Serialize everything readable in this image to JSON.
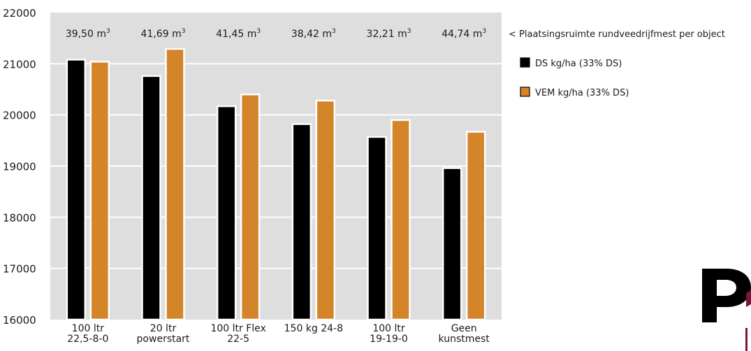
{
  "chart_data": {
    "type": "bar",
    "title": "",
    "xlabel": "",
    "ylabel": "",
    "ylim": [
      16000,
      22000
    ],
    "yticks": [
      16000,
      17000,
      18000,
      19000,
      20000,
      21000,
      22000
    ],
    "grid": true,
    "categories": [
      [
        "100 ltr",
        "22,5-8-0"
      ],
      [
        "20 ltr",
        "powerstart"
      ],
      [
        "100 ltr Flex",
        "22-5"
      ],
      [
        "150 kg 24-8"
      ],
      [
        "100 ltr",
        "19-19-0"
      ],
      [
        "Geen",
        "kunstmest"
      ]
    ],
    "series": [
      {
        "name": "DS kg/ha (33% DS)",
        "color": "#000000",
        "values": [
          21080,
          20760,
          20170,
          19820,
          19570,
          18960
        ]
      },
      {
        "name": "VEM kg/ha (33% DS)",
        "color": "#d4852a",
        "values": [
          21040,
          21290,
          20400,
          20280,
          19900,
          19670
        ]
      }
    ],
    "annotation_row": {
      "values": [
        "39,50",
        "41,69",
        "41,45",
        "38,42",
        "32,21",
        "44,74"
      ],
      "unit": "m",
      "unit_exp": "3",
      "caption": "< Plaatsingsruimte rundveedrijfmest per object"
    },
    "legend_position": "right",
    "colors": {
      "plot_bg": "#dedede",
      "grid": "#ffffff",
      "bar_outline": "#ffffff",
      "accent": "#7a1636"
    }
  }
}
